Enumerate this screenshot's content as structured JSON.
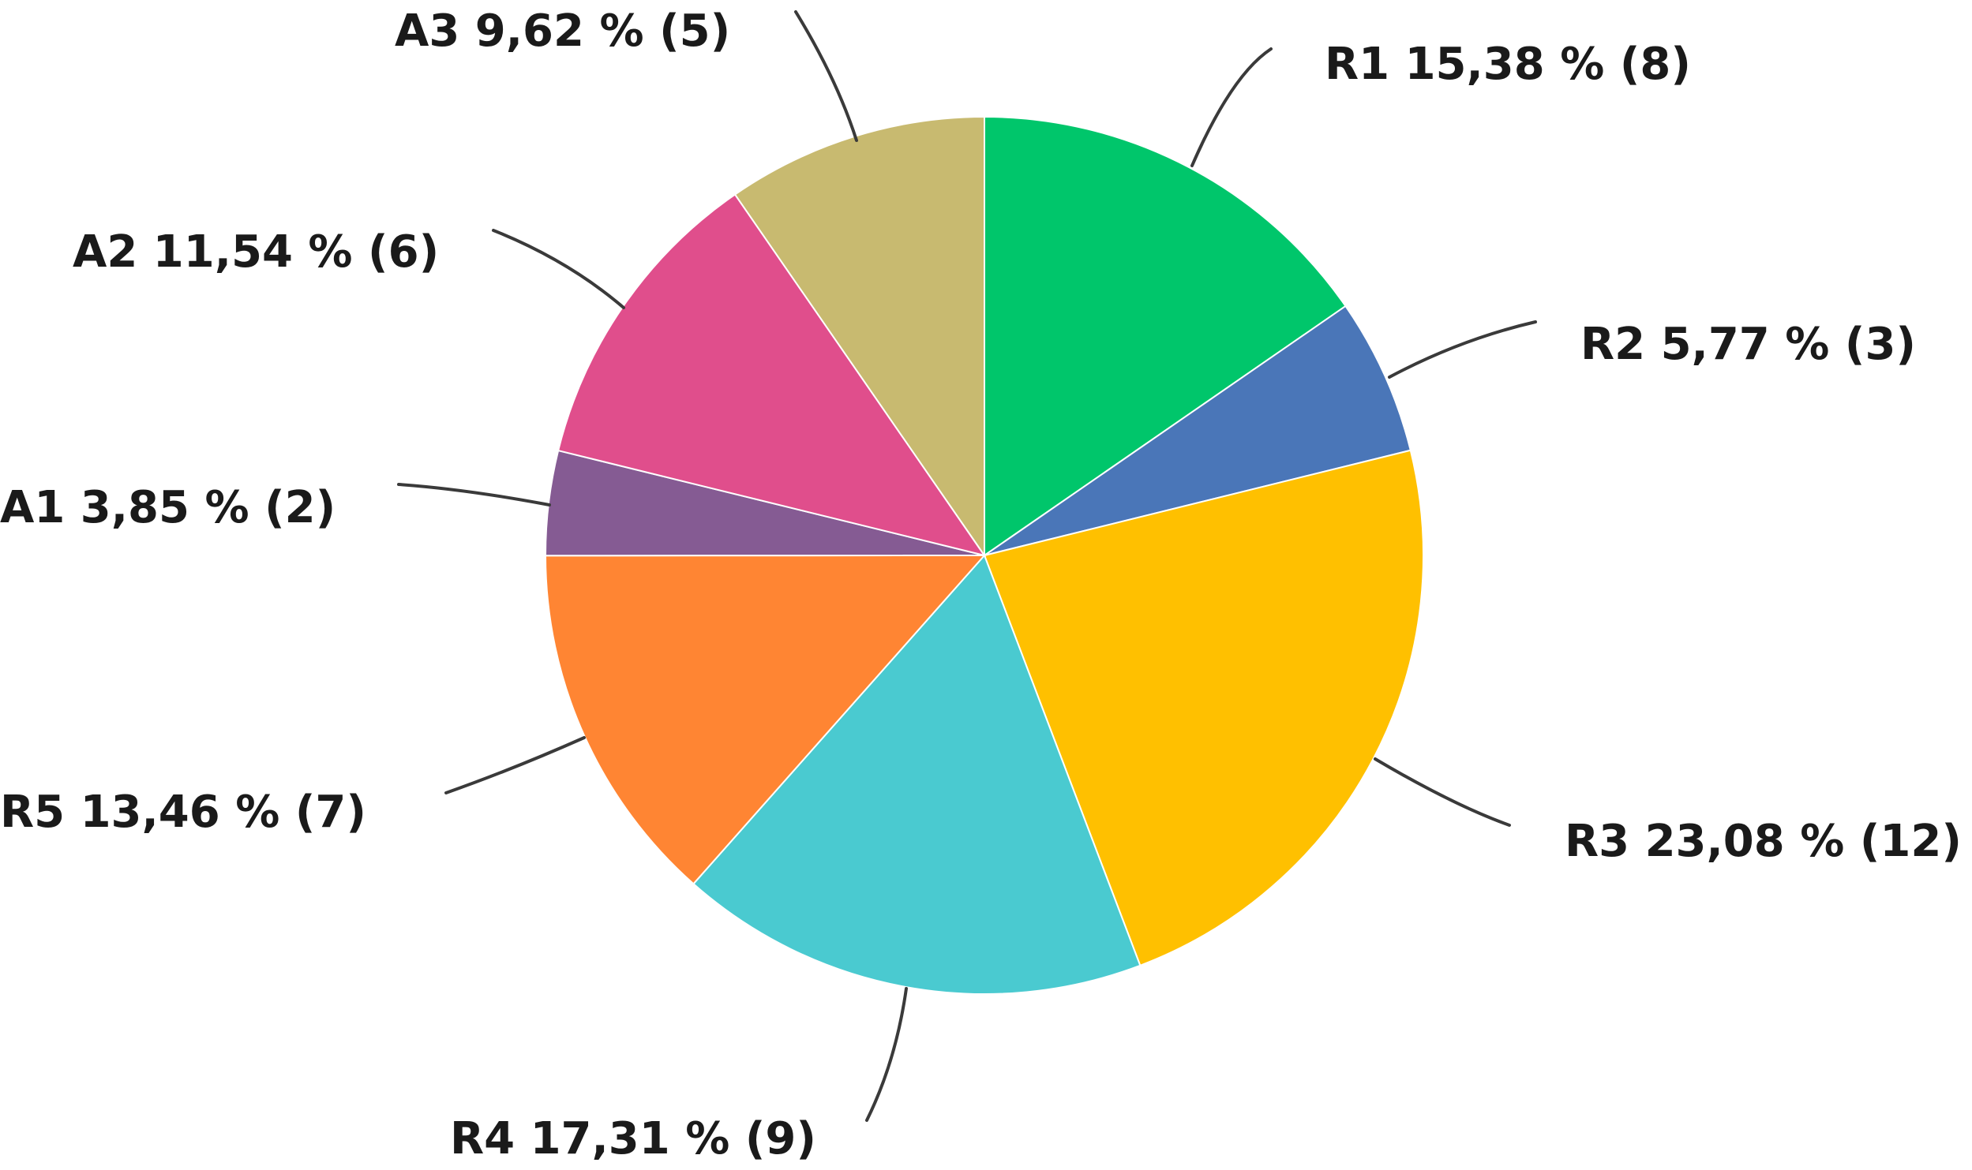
{
  "chart_data": {
    "type": "pie",
    "slices": [
      {
        "name": "R1",
        "percent": 15.38,
        "count": 8,
        "label": "R1 15,38 % (8)",
        "color": "#00C66B"
      },
      {
        "name": "R2",
        "percent": 5.77,
        "count": 3,
        "label": "R2 5,77 % (3)",
        "color": "#4A76B8"
      },
      {
        "name": "R3",
        "percent": 23.08,
        "count": 12,
        "label": "R3 23,08 % (12)",
        "color": "#FFC000"
      },
      {
        "name": "R4",
        "percent": 17.31,
        "count": 9,
        "label": "R4 17,31 % (9)",
        "color": "#4ACAD0"
      },
      {
        "name": "R5",
        "percent": 13.46,
        "count": 7,
        "label": "R5  13,46 % (7)",
        "color": "#FF8533"
      },
      {
        "name": "A1",
        "percent": 3.85,
        "count": 2,
        "label": "A1 3,85 % (2)",
        "color": "#855B93"
      },
      {
        "name": "A2",
        "percent": 11.54,
        "count": 6,
        "label": "A2 11,54 % (6)",
        "color": "#E04E8C"
      },
      {
        "name": "A3",
        "percent": 9.62,
        "count": 5,
        "label": "A3 9,62 % (5)",
        "color": "#C8BA70"
      }
    ],
    "start": "12 o'clock",
    "direction": "clockwise",
    "legend": "none"
  }
}
